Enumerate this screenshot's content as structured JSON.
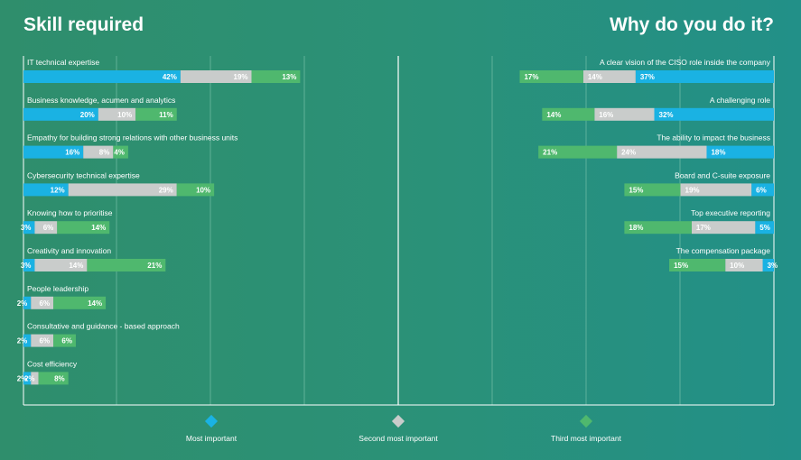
{
  "header": {
    "left_title": "Skill required",
    "right_title": "Why do you do it?"
  },
  "colors": {
    "most": "#1ab2e3",
    "second": "#c9cccb",
    "third": "#4fb86e",
    "grid": "#7ec4ad",
    "text": "#ffffff"
  },
  "legend": {
    "items": [
      {
        "label": "Most important",
        "color": "#1ab2e3"
      },
      {
        "label": "Second most important",
        "color": "#c9cccb"
      },
      {
        "label": "Third most important",
        "color": "#4fb86e"
      }
    ]
  },
  "chart_data": [
    {
      "type": "bar",
      "orientation": "horizontal",
      "stacked": true,
      "title": "Skill required",
      "series_names": [
        "Most important",
        "Second most important",
        "Third most important"
      ],
      "categories": [
        "IT technical expertise",
        "Business knowledge, acumen and analytics",
        "Empathy for building strong relations with other business units",
        "Cybersecurity technical expertise",
        "Knowing how to prioritise",
        "Creativity and innovation",
        "People leadership",
        "Consultative and guidance - based approach",
        "Cost efficiency"
      ],
      "values": [
        [
          42,
          19,
          13
        ],
        [
          20,
          10,
          11
        ],
        [
          16,
          8,
          4
        ],
        [
          12,
          29,
          10
        ],
        [
          3,
          6,
          14
        ],
        [
          3,
          14,
          21
        ],
        [
          2,
          6,
          14
        ],
        [
          2,
          6,
          6
        ],
        [
          2,
          2,
          8
        ]
      ],
      "xlim": [
        0,
        100
      ],
      "grid": true
    },
    {
      "type": "bar",
      "orientation": "horizontal",
      "stacked": true,
      "direction": "right-to-left",
      "title": "Why do you do it?",
      "series_names": [
        "Most important",
        "Second most important",
        "Third most important"
      ],
      "categories": [
        "A clear vision of the CISO role inside the company",
        "A challenging role",
        "The ability to impact the business",
        "Board and C-suite exposure",
        "Top executive reporting",
        "The compensation package"
      ],
      "values": [
        [
          37,
          14,
          17
        ],
        [
          32,
          16,
          14
        ],
        [
          18,
          24,
          21
        ],
        [
          6,
          19,
          15
        ],
        [
          5,
          17,
          18
        ],
        [
          3,
          10,
          15
        ]
      ],
      "xlim": [
        0,
        100
      ],
      "grid": true
    }
  ]
}
